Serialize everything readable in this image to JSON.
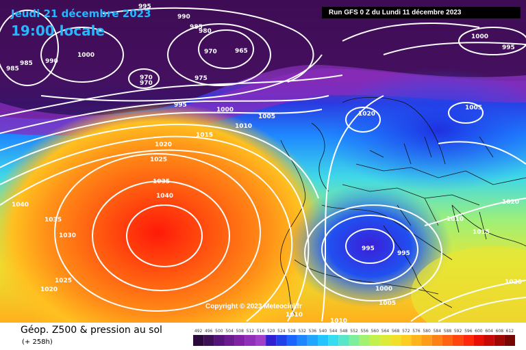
{
  "map": {
    "date": "Jeudi 21 décembre 2023",
    "time": "19:00 locale",
    "run": "Run GFS 0 Z du Lundi 11 décembre 2023",
    "copyright": "Copyright © 2023 Meteociel.fr",
    "footer_title": "Géop. Z500 & pression au sol",
    "footer_sub": "(+ 258h)",
    "iso_labels": [
      "995",
      "990",
      "985",
      "980",
      "970",
      "965",
      "1000",
      "985",
      "990",
      "985",
      "970",
      "970",
      "975",
      "995",
      "1000",
      "1005",
      "1010",
      "1015",
      "1020",
      "1025",
      "1035",
      "1040",
      "1040",
      "1035",
      "1030",
      "1025",
      "1020",
      "1000",
      "995",
      "1020",
      "1005",
      "1020",
      "1010",
      "1015",
      "995",
      "995",
      "1000",
      "1005",
      "1010",
      "1010",
      "1020"
    ],
    "scale_values": [
      "492",
      "496",
      "500",
      "504",
      "508",
      "512",
      "516",
      "520",
      "524",
      "528",
      "532",
      "536",
      "540",
      "544",
      "548",
      "552",
      "556",
      "560",
      "564",
      "568",
      "572",
      "576",
      "580",
      "584",
      "588",
      "592",
      "596",
      "600",
      "604",
      "608",
      "612"
    ],
    "scale_colors": [
      "#2a0a3a",
      "#3d0f55",
      "#55147a",
      "#6a1c8f",
      "#7f23a4",
      "#9030b8",
      "#a040c8",
      "#3020d0",
      "#2040e8",
      "#1c64ff",
      "#1e86ff",
      "#20a6ff",
      "#24c4ff",
      "#36dcf0",
      "#56e6c8",
      "#7cee9c",
      "#a2f270",
      "#c2f04c",
      "#dcec36",
      "#f0e02a",
      "#ffcc20",
      "#ffb41c",
      "#ff9c18",
      "#ff8014",
      "#ff6410",
      "#ff460c",
      "#ff2808",
      "#e81005",
      "#c80a05",
      "#a00804",
      "#780604"
    ]
  }
}
